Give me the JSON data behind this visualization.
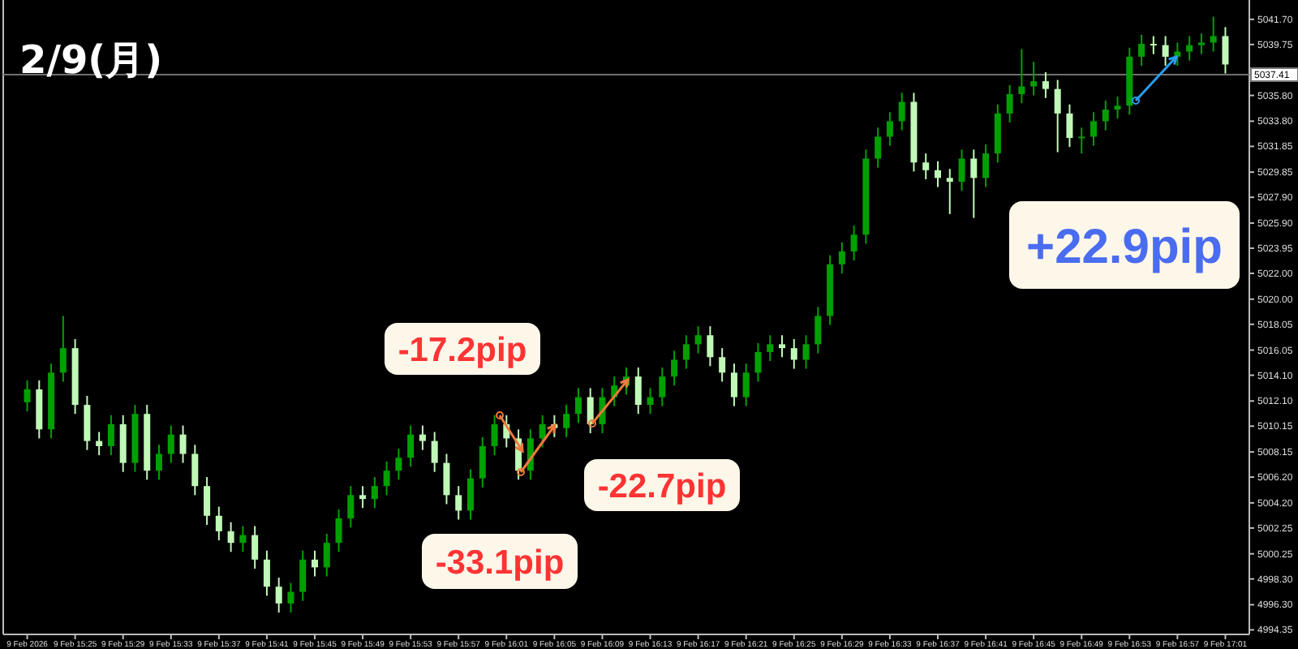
{
  "chart_data": {
    "type": "candlestick",
    "title": "2/9(月)",
    "annotations": [
      "-17.2pip",
      "-33.1pip",
      "-22.7pip",
      "+22.9pip"
    ],
    "colors": [
      "#00a000",
      "#c0f8b8",
      "#00a000",
      "#00a000",
      "#c0f8b8",
      "#c0f8b8",
      "#c0f8b8",
      "#00a000",
      "#c0f8b8",
      "#00a000",
      "#c0f8b8",
      "#00a000",
      "#00a000",
      "#c0f8b8",
      "#c0f8b8",
      "#c0f8b8",
      "#c0f8b8",
      "#c0f8b8",
      "#00a000",
      "#c0f8b8",
      "#c0f8b8",
      "#c0f8b8",
      "#00a000",
      "#00a000",
      "#c0f8b8",
      "#00a000",
      "#00a000",
      "#00a000",
      "#c0f8b8",
      "#00a000",
      "#00a000",
      "#00a000",
      "#00a000",
      "#c0f8b8",
      "#c0f8b8",
      "#c0f8b8",
      "#c0f8b8",
      "#00a000",
      "#00a000",
      "#00a000",
      "#c0f8b8",
      "#c0f8b8",
      "#00a000",
      "#00a000",
      "#c0f8b8",
      "#00a000",
      "#00a000",
      "#c0f8b8",
      "#00a000",
      "#00a000",
      "#00a000",
      "#c0f8b8",
      "#00a000",
      "#00a000",
      "#00a000",
      "#00a000",
      "#00a000",
      "#c0f8b8",
      "#c0f8b8",
      "#c0f8b8",
      "#00a000",
      "#00a000",
      "#00a000",
      "#c0f8b8",
      "#c0f8b8",
      "#00a000",
      "#00a000",
      "#00a000",
      "#00a000",
      "#00a000",
      "#00a000",
      "#00a000",
      "#00a000",
      "#00a000",
      "#c0f8b8",
      "#c0f8b8",
      "#c0f8b8",
      "#c0f8b8",
      "#00a000",
      "#c0f8b8",
      "#00a000",
      "#00a000",
      "#00a000",
      "#00a000",
      "#00a000",
      "#c0f8b8",
      "#c0f8b8",
      "#c0f8b8",
      "#00a000",
      "#00a000",
      "#00a000",
      "#00a000",
      "#00a000",
      "#00a000",
      "#c0f8b8",
      "#c0f8b8",
      "#00a000",
      "#00a000",
      "#00a000",
      "#00a000",
      "#c0f8b8"
    ],
    "x": [
      "2026-02-09T15:21",
      "2026-02-09T15:22",
      "2026-02-09T15:23",
      "2026-02-09T15:24",
      "2026-02-09T15:25",
      "2026-02-09T15:26",
      "2026-02-09T15:27",
      "2026-02-09T15:28",
      "2026-02-09T15:29",
      "2026-02-09T15:30",
      "2026-02-09T15:31",
      "2026-02-09T15:32",
      "2026-02-09T15:33",
      "2026-02-09T15:34",
      "2026-02-09T15:35",
      "2026-02-09T15:36",
      "2026-02-09T15:37",
      "2026-02-09T15:38",
      "2026-02-09T15:39",
      "2026-02-09T15:40",
      "2026-02-09T15:41",
      "2026-02-09T15:42",
      "2026-02-09T15:43",
      "2026-02-09T15:44",
      "2026-02-09T15:45",
      "2026-02-09T15:46",
      "2026-02-09T15:47",
      "2026-02-09T15:48",
      "2026-02-09T15:49",
      "2026-02-09T15:50",
      "2026-02-09T15:51",
      "2026-02-09T15:52",
      "2026-02-09T15:53",
      "2026-02-09T15:54",
      "2026-02-09T15:55",
      "2026-02-09T15:56",
      "2026-02-09T15:57",
      "2026-02-09T15:58",
      "2026-02-09T15:59",
      "2026-02-09T16:00",
      "2026-02-09T16:01",
      "2026-02-09T16:02",
      "2026-02-09T16:03",
      "2026-02-09T16:04",
      "2026-02-09T16:05",
      "2026-02-09T16:06",
      "2026-02-09T16:07",
      "2026-02-09T16:08",
      "2026-02-09T16:09",
      "2026-02-09T16:10",
      "2026-02-09T16:11",
      "2026-02-09T16:12",
      "2026-02-09T16:13",
      "2026-02-09T16:14",
      "2026-02-09T16:15",
      "2026-02-09T16:16",
      "2026-02-09T16:17",
      "2026-02-09T16:18",
      "2026-02-09T16:19",
      "2026-02-09T16:20",
      "2026-02-09T16:21",
      "2026-02-09T16:22",
      "2026-02-09T16:23",
      "2026-02-09T16:24",
      "2026-02-09T16:25",
      "2026-02-09T16:26",
      "2026-02-09T16:27",
      "2026-02-09T16:28",
      "2026-02-09T16:29",
      "2026-02-09T16:30",
      "2026-02-09T16:31",
      "2026-02-09T16:32",
      "2026-02-09T16:33",
      "2026-02-09T16:34",
      "2026-02-09T16:35",
      "2026-02-09T16:36",
      "2026-02-09T16:37",
      "2026-02-09T16:38",
      "2026-02-09T16:39",
      "2026-02-09T16:40",
      "2026-02-09T16:41",
      "2026-02-09T16:42",
      "2026-02-09T16:43",
      "2026-02-09T16:44",
      "2026-02-09T16:45",
      "2026-02-09T16:46",
      "2026-02-09T16:47",
      "2026-02-09T16:48",
      "2026-02-09T16:49",
      "2026-02-09T16:50",
      "2026-02-09T16:51",
      "2026-02-09T16:52",
      "2026-02-09T16:53",
      "2026-02-09T16:54",
      "2026-02-09T16:55",
      "2026-02-09T16:56",
      "2026-02-09T16:57",
      "2026-02-09T16:58",
      "2026-02-09T16:59",
      "2026-02-09T17:00",
      "2026-02-09T17:01"
    ],
    "ohlc": [
      [
        5012.0,
        5013.7,
        5011.3,
        5013.0
      ],
      [
        5013.0,
        5013.7,
        5009.2,
        5009.9
      ],
      [
        5009.9,
        5015.0,
        5009.2,
        5014.3
      ],
      [
        5014.3,
        5018.7,
        5013.6,
        5016.2
      ],
      [
        5016.2,
        5016.9,
        5011.1,
        5011.8
      ],
      [
        5011.8,
        5012.5,
        5008.3,
        5009.0
      ],
      [
        5009.0,
        5009.7,
        5007.9,
        5008.6
      ],
      [
        5008.6,
        5011.0,
        5007.9,
        5010.3
      ],
      [
        5010.3,
        5011.0,
        5006.6,
        5007.3
      ],
      [
        5007.3,
        5011.8,
        5006.6,
        5011.1
      ],
      [
        5011.1,
        5011.8,
        5006.0,
        5006.7
      ],
      [
        5006.7,
        5008.7,
        5006.0,
        5008.0
      ],
      [
        5008.0,
        5010.2,
        5007.3,
        5009.5
      ],
      [
        5009.5,
        5010.2,
        5007.3,
        5008.0
      ],
      [
        5008.0,
        5008.7,
        5004.8,
        5005.5
      ],
      [
        5005.5,
        5006.2,
        5002.5,
        5003.2
      ],
      [
        5003.2,
        5003.9,
        5001.3,
        5002.0
      ],
      [
        5002.0,
        5002.7,
        5000.4,
        5001.1
      ],
      [
        5001.1,
        5002.4,
        5000.4,
        5001.7
      ],
      [
        5001.7,
        5002.4,
        4999.1,
        4999.8
      ],
      [
        4999.8,
        5000.5,
        4997.0,
        4997.7
      ],
      [
        4997.7,
        4998.4,
        4995.7,
        4996.4
      ],
      [
        4996.4,
        4998.0,
        4995.7,
        4997.3
      ],
      [
        4997.3,
        5000.5,
        4996.6,
        4999.8
      ],
      [
        4999.8,
        5000.5,
        4998.5,
        4999.2
      ],
      [
        4999.2,
        5001.8,
        4998.5,
        5001.1
      ],
      [
        5001.1,
        5003.7,
        5000.4,
        5003.0
      ],
      [
        5003.0,
        5005.5,
        5002.3,
        5004.8
      ],
      [
        5004.8,
        5005.5,
        5003.8,
        5004.5
      ],
      [
        5004.5,
        5006.2,
        5003.8,
        5005.5
      ],
      [
        5005.5,
        5007.4,
        5004.8,
        5006.7
      ],
      [
        5006.7,
        5008.4,
        5006.0,
        5007.7
      ],
      [
        5007.7,
        5010.2,
        5007.0,
        5009.5
      ],
      [
        5009.5,
        5010.2,
        5008.3,
        5009.0
      ],
      [
        5009.0,
        5009.7,
        5006.6,
        5007.3
      ],
      [
        5007.3,
        5008.0,
        5004.1,
        5004.8
      ],
      [
        5004.8,
        5005.5,
        5002.9,
        5003.6
      ],
      [
        5003.6,
        5006.8,
        5002.9,
        5006.1
      ],
      [
        5006.1,
        5009.3,
        5005.4,
        5008.6
      ],
      [
        5008.6,
        5011.0,
        5007.9,
        5010.3
      ],
      [
        5010.3,
        5011.0,
        5008.5,
        5009.2
      ],
      [
        5009.2,
        5009.9,
        5006.0,
        5006.7
      ],
      [
        5006.7,
        5009.9,
        5006.0,
        5009.2
      ],
      [
        5009.2,
        5011.0,
        5008.5,
        5010.3
      ],
      [
        5010.3,
        5011.0,
        5009.3,
        5010.0
      ],
      [
        5010.0,
        5011.8,
        5009.3,
        5011.1
      ],
      [
        5011.1,
        5013.1,
        5010.4,
        5012.4
      ],
      [
        5012.4,
        5013.1,
        5009.6,
        5010.3
      ],
      [
        5010.3,
        5013.1,
        5009.6,
        5012.4
      ],
      [
        5012.4,
        5014.0,
        5011.7,
        5013.3
      ],
      [
        5013.3,
        5014.7,
        5012.6,
        5014.0
      ],
      [
        5014.0,
        5014.7,
        5011.1,
        5011.8
      ],
      [
        5011.8,
        5013.1,
        5011.1,
        5012.4
      ],
      [
        5012.4,
        5014.7,
        5011.7,
        5014.0
      ],
      [
        5014.0,
        5016.0,
        5013.3,
        5015.3
      ],
      [
        5015.3,
        5017.2,
        5014.6,
        5016.5
      ],
      [
        5016.5,
        5017.9,
        5015.8,
        5017.2
      ],
      [
        5017.2,
        5017.9,
        5014.8,
        5015.5
      ],
      [
        5015.5,
        5016.2,
        5013.6,
        5014.3
      ],
      [
        5014.3,
        5015.0,
        5011.7,
        5012.4
      ],
      [
        5012.4,
        5015.0,
        5011.7,
        5014.3
      ],
      [
        5014.3,
        5016.6,
        5013.6,
        5015.9
      ],
      [
        5015.9,
        5017.2,
        5015.2,
        5016.5
      ],
      [
        5016.5,
        5017.2,
        5015.5,
        5016.2
      ],
      [
        5016.2,
        5016.9,
        5014.6,
        5015.3
      ],
      [
        5015.3,
        5017.2,
        5014.6,
        5016.5
      ],
      [
        5016.5,
        5019.4,
        5015.8,
        5018.7
      ],
      [
        5018.7,
        5023.4,
        5018.0,
        5022.7
      ],
      [
        5022.7,
        5024.4,
        5022.0,
        5023.7
      ],
      [
        5023.7,
        5025.7,
        5023.0,
        5025.0
      ],
      [
        5025.0,
        5031.6,
        5024.3,
        5030.9
      ],
      [
        5030.9,
        5033.3,
        5030.2,
        5032.6
      ],
      [
        5032.6,
        5034.5,
        5031.9,
        5033.8
      ],
      [
        5033.8,
        5036.0,
        5033.1,
        5035.3
      ],
      [
        5035.3,
        5036.0,
        5029.9,
        5030.6
      ],
      [
        5030.6,
        5031.3,
        5029.3,
        5030.0
      ],
      [
        5030.0,
        5030.7,
        5028.7,
        5029.4
      ],
      [
        5029.4,
        5030.1,
        5026.6,
        5029.1
      ],
      [
        5029.1,
        5031.6,
        5028.4,
        5030.9
      ],
      [
        5030.9,
        5031.6,
        5026.3,
        5029.4
      ],
      [
        5029.4,
        5032.0,
        5028.7,
        5031.3
      ],
      [
        5031.3,
        5035.1,
        5030.6,
        5034.4
      ],
      [
        5034.4,
        5036.6,
        5033.7,
        5035.9
      ],
      [
        5035.9,
        5039.4,
        5035.2,
        5036.5
      ],
      [
        5036.5,
        5038.4,
        5035.8,
        5036.9
      ],
      [
        5036.9,
        5037.6,
        5035.6,
        5036.3
      ],
      [
        5036.3,
        5037.0,
        5031.4,
        5034.4
      ],
      [
        5034.4,
        5035.1,
        5031.8,
        5032.5
      ],
      [
        5032.5,
        5033.3,
        5031.3,
        5032.6
      ],
      [
        5032.6,
        5034.5,
        5031.9,
        5033.8
      ],
      [
        5033.8,
        5035.4,
        5033.1,
        5034.7
      ],
      [
        5034.7,
        5035.7,
        5034.0,
        5035.0
      ],
      [
        5035.0,
        5039.5,
        5034.3,
        5038.8
      ],
      [
        5038.8,
        5040.5,
        5038.1,
        5039.8
      ],
      [
        5039.8,
        5040.4,
        5039.0,
        5039.7
      ],
      [
        5039.7,
        5040.4,
        5038.1,
        5038.8
      ],
      [
        5038.8,
        5039.9,
        5038.1,
        5039.2
      ],
      [
        5039.2,
        5040.4,
        5038.5,
        5039.7
      ],
      [
        5039.7,
        5040.6,
        5039.0,
        5039.9
      ],
      [
        5039.9,
        5041.9,
        5039.2,
        5040.4
      ],
      [
        5040.4,
        5041.1,
        5037.5,
        5038.2
      ]
    ],
    "xlim": [
      "2026-02-09T15:19",
      "2026-02-09T17:03"
    ],
    "xticks": [
      {
        "value": "2026-02-09T15:21",
        "label": "9 Feb 2026"
      },
      {
        "value": "2026-02-09T15:25",
        "label": "9 Feb 15:25"
      },
      {
        "value": "2026-02-09T15:29",
        "label": "9 Feb 15:29"
      },
      {
        "value": "2026-02-09T15:33",
        "label": "9 Feb 15:33"
      },
      {
        "value": "2026-02-09T15:37",
        "label": "9 Feb 15:37"
      },
      {
        "value": "2026-02-09T15:41",
        "label": "9 Feb 15:41"
      },
      {
        "value": "2026-02-09T15:45",
        "label": "9 Feb 15:45"
      },
      {
        "value": "2026-02-09T15:49",
        "label": "9 Feb 15:49"
      },
      {
        "value": "2026-02-09T15:53",
        "label": "9 Feb 15:53"
      },
      {
        "value": "2026-02-09T15:57",
        "label": "9 Feb 15:57"
      },
      {
        "value": "2026-02-09T16:01",
        "label": "9 Feb 16:01"
      },
      {
        "value": "2026-02-09T16:05",
        "label": "9 Feb 16:05"
      },
      {
        "value": "2026-02-09T16:09",
        "label": "9 Feb 16:09"
      },
      {
        "value": "2026-02-09T16:13",
        "label": "9 Feb 16:13"
      },
      {
        "value": "2026-02-09T16:17",
        "label": "9 Feb 16:17"
      },
      {
        "value": "2026-02-09T16:21",
        "label": "9 Feb 16:21"
      },
      {
        "value": "2026-02-09T16:25",
        "label": "9 Feb 16:25"
      },
      {
        "value": "2026-02-09T16:29",
        "label": "9 Feb 16:29"
      },
      {
        "value": "2026-02-09T16:33",
        "label": "9 Feb 16:33"
      },
      {
        "value": "2026-02-09T16:37",
        "label": "9 Feb 16:37"
      },
      {
        "value": "2026-02-09T16:41",
        "label": "9 Feb 16:41"
      },
      {
        "value": "2026-02-09T16:45",
        "label": "9 Feb 16:45"
      },
      {
        "value": "2026-02-09T16:49",
        "label": "9 Feb 16:49"
      },
      {
        "value": "2026-02-09T16:53",
        "label": "9 Feb 16:53"
      },
      {
        "value": "2026-02-09T16:57",
        "label": "9 Feb 16:57"
      },
      {
        "value": "2026-02-09T17:01",
        "label": "9 Feb 17:01"
      }
    ],
    "ylim": [
      4994.0,
      5043.2
    ],
    "yticks": [
      {
        "value": 5041.7,
        "label": "5041.70"
      },
      {
        "value": 5039.75,
        "label": "5039.75"
      },
      {
        "value": 5035.8,
        "label": "5035.80"
      },
      {
        "value": 5033.8,
        "label": "5033.80"
      },
      {
        "value": 5031.85,
        "label": "5031.85"
      },
      {
        "value": 5029.85,
        "label": "5029.85"
      },
      {
        "value": 5027.9,
        "label": "5027.90"
      },
      {
        "value": 5025.9,
        "label": "5025.90"
      },
      {
        "value": 5023.95,
        "label": "5023.95"
      },
      {
        "value": 5022.0,
        "label": "5022.00"
      },
      {
        "value": 5020.0,
        "label": "5020.00"
      },
      {
        "value": 5018.05,
        "label": "5018.05"
      },
      {
        "value": 5016.05,
        "label": "5016.05"
      },
      {
        "value": 5014.1,
        "label": "5014.10"
      },
      {
        "value": 5012.1,
        "label": "5012.10"
      },
      {
        "value": 5010.15,
        "label": "5010.15"
      },
      {
        "value": 5008.15,
        "label": "5008.15"
      },
      {
        "value": 5006.2,
        "label": "5006.20"
      },
      {
        "value": 5004.2,
        "label": "5004.20"
      },
      {
        "value": 5002.25,
        "label": "5002.25"
      },
      {
        "value": 5000.25,
        "label": "5000.25"
      },
      {
        "value": 4998.3,
        "label": "4998.30"
      },
      {
        "value": 4996.3,
        "label": "4996.30"
      },
      {
        "value": 4994.35,
        "label": "4994.35"
      }
    ],
    "ref_lines": [
      {
        "axis": "y",
        "value": 5037.41,
        "label": "5037.41",
        "color": "#707070"
      }
    ]
  }
}
